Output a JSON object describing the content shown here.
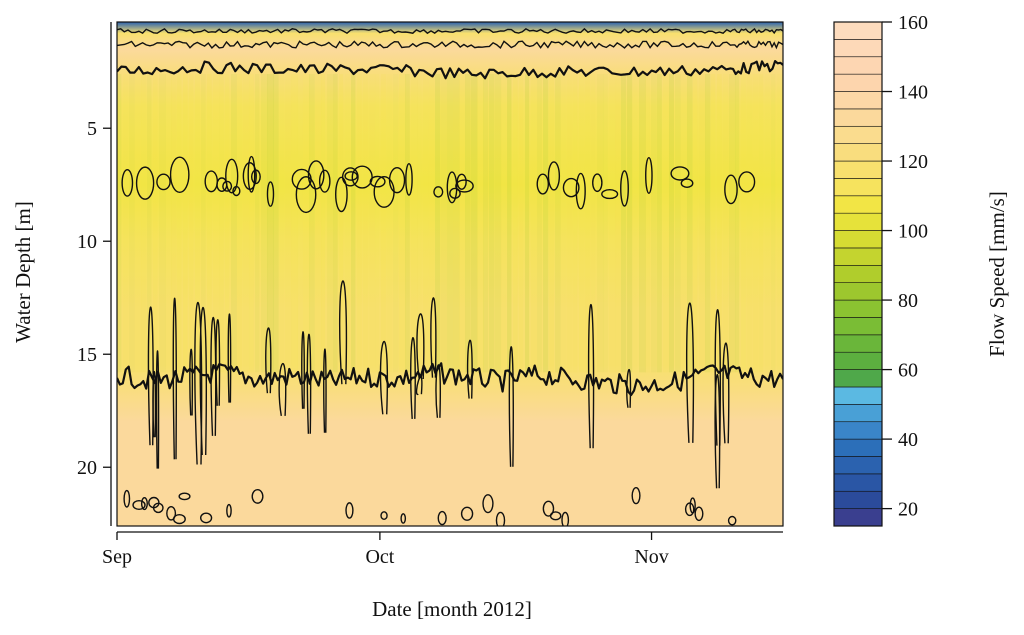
{
  "chart_data": {
    "type": "heatmap",
    "title": "",
    "xlabel": "Date [month 2012]",
    "ylabel": "Water Depth [m]",
    "colorbar_label": "Flow Speed [mm/s]",
    "x_ticks": [
      {
        "label": "Sep",
        "value": 0
      },
      {
        "label": "Oct",
        "value": 30
      },
      {
        "label": "Nov",
        "value": 61
      }
    ],
    "x_range_days": [
      0,
      76
    ],
    "y_ticks": [
      5,
      10,
      15,
      20
    ],
    "y_range": [
      0.3,
      22.6
    ],
    "y_inverted": true,
    "colorbar_ticks": [
      20,
      40,
      60,
      80,
      100,
      120,
      140,
      160
    ],
    "colorbar_range": [
      15,
      160
    ],
    "colorbar_step": 5,
    "colorbar_colors": [
      "#3a3f8f",
      "#2b4b9b",
      "#2a56a5",
      "#2b62af",
      "#2c6fb9",
      "#3a85c8",
      "#49a0d6",
      "#5bb9e2",
      "#4fa84a",
      "#5caf3f",
      "#6ab63a",
      "#7abd35",
      "#8bc331",
      "#9dc72e",
      "#b0cd2c",
      "#c4d42f",
      "#d6dc33",
      "#e6e23a",
      "#f2e545",
      "#f6e35e",
      "#f8e06e",
      "#f9dd7e",
      "#fadc8e",
      "#fbd99c",
      "#fcd7a6",
      "#fdd5ad",
      "#fdd6b2",
      "#fdd9b8",
      "#fddcbe"
    ],
    "depth_profile": [
      {
        "depth": 0.3,
        "speed": 30
      },
      {
        "depth": 0.8,
        "speed": 115
      },
      {
        "depth": 1.5,
        "speed": 130
      },
      {
        "depth": 2.5,
        "speed": 122
      },
      {
        "depth": 4,
        "speed": 112
      },
      {
        "depth": 7.5,
        "speed": 108
      },
      {
        "depth": 10,
        "speed": 112
      },
      {
        "depth": 13,
        "speed": 116
      },
      {
        "depth": 15.5,
        "speed": 119
      },
      {
        "depth": 16.5,
        "speed": 124
      },
      {
        "depth": 18,
        "speed": 130
      },
      {
        "depth": 20,
        "speed": 132
      },
      {
        "depth": 22.6,
        "speed": 132
      }
    ],
    "contour_levels": [
      60,
      80,
      100,
      120
    ],
    "main_contour_level": 120,
    "main_contour_depth": [
      {
        "day": 0,
        "depth": 15.9
      },
      {
        "day": 4,
        "depth": 16.2
      },
      {
        "day": 8,
        "depth": 16.0
      },
      {
        "day": 12,
        "depth": 15.8
      },
      {
        "day": 16,
        "depth": 16.1
      },
      {
        "day": 20,
        "depth": 16.0
      },
      {
        "day": 24,
        "depth": 16.2
      },
      {
        "day": 28,
        "depth": 16.0
      },
      {
        "day": 32,
        "depth": 16.1
      },
      {
        "day": 36,
        "depth": 15.8
      },
      {
        "day": 40,
        "depth": 16.0
      },
      {
        "day": 44,
        "depth": 16.2
      },
      {
        "day": 48,
        "depth": 15.9
      },
      {
        "day": 52,
        "depth": 16.1
      },
      {
        "day": 56,
        "depth": 16.3
      },
      {
        "day": 60,
        "depth": 16.4
      },
      {
        "day": 64,
        "depth": 16.2
      },
      {
        "day": 68,
        "depth": 15.8
      },
      {
        "day": 72,
        "depth": 16.0
      },
      {
        "day": 76,
        "depth": 16.1
      }
    ],
    "upper_contour_depth": [
      {
        "day": 0,
        "depth": 2.5
      },
      {
        "day": 10,
        "depth": 2.3
      },
      {
        "day": 20,
        "depth": 2.4
      },
      {
        "day": 30,
        "depth": 2.4
      },
      {
        "day": 40,
        "depth": 2.6
      },
      {
        "day": 50,
        "depth": 2.5
      },
      {
        "day": 60,
        "depth": 2.5
      },
      {
        "day": 70,
        "depth": 2.4
      },
      {
        "day": 76,
        "depth": 2.2
      }
    ],
    "grid": false,
    "colorbar_position": "right"
  }
}
